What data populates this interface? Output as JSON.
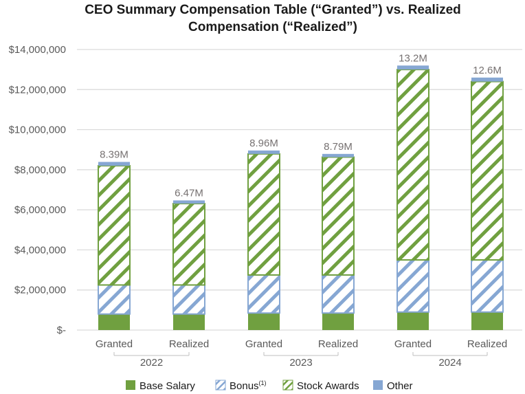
{
  "chart_data": {
    "type": "bar",
    "stacked": true,
    "title_lines": [
      "CEO Summary Compensation Table (“Granted”) vs. Realized",
      "Compensation (“Realized”)"
    ],
    "groups": [
      "2022",
      "2023",
      "2024"
    ],
    "categories": [
      "Granted",
      "Realized",
      "Granted",
      "Realized",
      "Granted",
      "Realized"
    ],
    "group_of_category": [
      0,
      0,
      1,
      1,
      2,
      2
    ],
    "ylim": [
      0,
      14000000
    ],
    "yticks": [
      0,
      2000000,
      4000000,
      6000000,
      8000000,
      10000000,
      12000000,
      14000000
    ],
    "ytick_labels": [
      "$-",
      "$2,000,000",
      "$4,000,000",
      "$6,000,000",
      "$8,000,000",
      "$10,000,000",
      "$12,000,000",
      "$14,000,000"
    ],
    "grid": true,
    "series": [
      {
        "name": "Base Salary",
        "key": "base",
        "color": "#70a040",
        "pattern": "solid",
        "values": [
          800000,
          800000,
          850000,
          850000,
          900000,
          900000
        ]
      },
      {
        "name": "Bonus",
        "key": "bonus",
        "superscript": "(1)",
        "color": "#86a7d3",
        "pattern": "hatch",
        "values": [
          1450000,
          1450000,
          1900000,
          1900000,
          2600000,
          2600000
        ]
      },
      {
        "name": "Stock Awards",
        "key": "stock",
        "color": "#70a040",
        "pattern": "hatch",
        "values": [
          5950000,
          4060000,
          6040000,
          5880000,
          9500000,
          8900000
        ]
      },
      {
        "name": "Other",
        "key": "other",
        "color": "#86a7d3",
        "pattern": "solid",
        "values": [
          190000,
          160000,
          170000,
          160000,
          200000,
          200000
        ]
      }
    ],
    "totals": [
      "8.39M",
      "6.47M",
      "8.96M",
      "8.79M",
      "13.2M",
      "12.6M"
    ],
    "legend_position": "bottom"
  },
  "colors": {
    "green": "#70a040",
    "blue": "#86a7d3",
    "grid": "#d9d9d9",
    "axis_text": "#595959",
    "total_text": "#767171"
  }
}
